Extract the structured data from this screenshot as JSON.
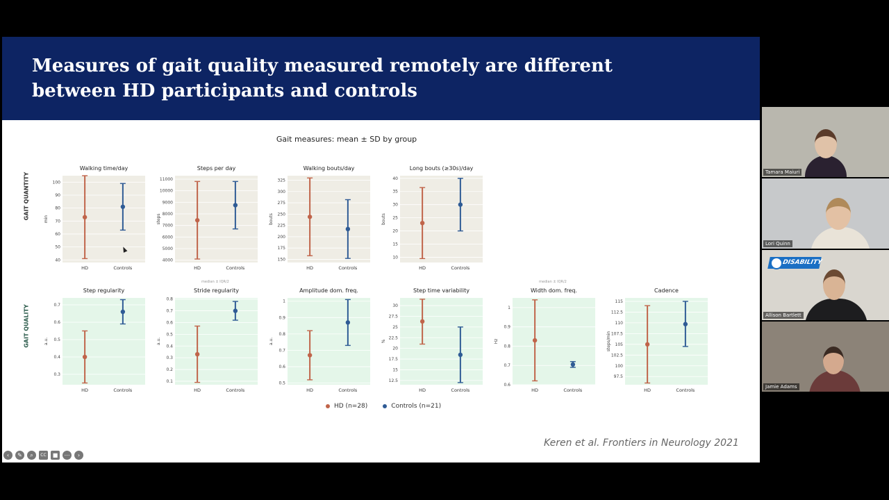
{
  "slide": {
    "title": "Measures of gait quality measured remotely are different\nbetween HD participants and controls",
    "figure_title": "Gait measures: mean ± SD by group",
    "row_labels": [
      "GAIT QUANTITY",
      "GAIT QUALITY"
    ],
    "small_notes": [
      "median ± IQR/2",
      "median ± IQR/2"
    ],
    "legend": [
      {
        "label": "HD (n=28)",
        "color": "#c0644a"
      },
      {
        "label": "Controls (n=21)",
        "color": "#2f5b95"
      }
    ],
    "citation": "Keren et al. Frontiers in Neurology 2021"
  },
  "colors": {
    "banner": "#0d2463",
    "hd": "#c0644a",
    "controls": "#2f5b95",
    "quantity_bg": "#efede5",
    "quality_bg": "#e4f6e9"
  },
  "chart_data": [
    {
      "type": "scatter",
      "title": "Walking time/day",
      "ylabel": "min",
      "categories": [
        "HD",
        "Controls"
      ],
      "yticks": [
        40,
        50,
        60,
        70,
        80,
        90,
        100
      ],
      "ylim": [
        38,
        105
      ],
      "row": "quantity",
      "series": [
        {
          "name": "HD (n=28)",
          "mean": 73,
          "low": 41,
          "high": 105
        },
        {
          "name": "Controls (n=21)",
          "mean": 81,
          "low": 63,
          "high": 99
        }
      ]
    },
    {
      "type": "scatter",
      "title": "Steps per day",
      "ylabel": "steps",
      "categories": [
        "HD",
        "Controls"
      ],
      "yticks": [
        4000,
        5000,
        6000,
        7000,
        8000,
        9000,
        10000,
        11000
      ],
      "ylim": [
        3800,
        11300
      ],
      "row": "quantity",
      "series": [
        {
          "name": "HD (n=28)",
          "mean": 7450,
          "low": 4100,
          "high": 10800
        },
        {
          "name": "Controls (n=21)",
          "mean": 8750,
          "low": 6700,
          "high": 10800
        }
      ]
    },
    {
      "type": "scatter",
      "title": "Walking bouts/day",
      "ylabel": "bouts",
      "categories": [
        "HD",
        "Controls"
      ],
      "yticks": [
        150,
        175,
        200,
        225,
        250,
        275,
        300,
        325
      ],
      "ylim": [
        143,
        335
      ],
      "row": "quantity",
      "series": [
        {
          "name": "HD (n=28)",
          "mean": 244,
          "low": 158,
          "high": 330
        },
        {
          "name": "Controls (n=21)",
          "mean": 217,
          "low": 152,
          "high": 282
        }
      ]
    },
    {
      "type": "scatter",
      "title": "Long bouts (≥30s)/day",
      "ylabel": "bouts",
      "categories": [
        "HD",
        "Controls"
      ],
      "yticks": [
        10,
        15,
        20,
        25,
        30,
        35,
        40
      ],
      "ylim": [
        8,
        41
      ],
      "row": "quantity",
      "series": [
        {
          "name": "HD (n=28)",
          "mean": 23,
          "low": 9.5,
          "high": 36.5
        },
        {
          "name": "Controls (n=21)",
          "mean": 30,
          "low": 20,
          "high": 40
        }
      ]
    },
    {
      "type": "scatter",
      "title": "Step regularity",
      "ylabel": "a.u.",
      "categories": [
        "HD",
        "Controls"
      ],
      "yticks": [
        0.3,
        0.4,
        0.5,
        0.6,
        0.7
      ],
      "ylim": [
        0.24,
        0.74
      ],
      "row": "quality",
      "series": [
        {
          "name": "HD (n=28)",
          "mean": 0.4,
          "low": 0.25,
          "high": 0.55
        },
        {
          "name": "Controls (n=21)",
          "mean": 0.66,
          "low": 0.59,
          "high": 0.73
        }
      ]
    },
    {
      "type": "scatter",
      "title": "Stride regularity",
      "ylabel": "a.u.",
      "categories": [
        "HD",
        "Controls"
      ],
      "yticks": [
        0.1,
        0.2,
        0.3,
        0.4,
        0.5,
        0.6,
        0.7,
        0.8
      ],
      "ylim": [
        0.07,
        0.81
      ],
      "row": "quality",
      "series": [
        {
          "name": "HD (n=28)",
          "mean": 0.33,
          "low": 0.09,
          "high": 0.57
        },
        {
          "name": "Controls (n=21)",
          "mean": 0.7,
          "low": 0.62,
          "high": 0.78
        }
      ]
    },
    {
      "type": "scatter",
      "title": "Amplitude dom. freq.",
      "ylabel": "a.u.",
      "categories": [
        "HD",
        "Controls"
      ],
      "yticks": [
        0.5,
        0.6,
        0.7,
        0.8,
        0.9,
        1.0
      ],
      "ylim": [
        0.49,
        1.02
      ],
      "row": "quality",
      "series": [
        {
          "name": "HD (n=28)",
          "mean": 0.67,
          "low": 0.52,
          "high": 0.82
        },
        {
          "name": "Controls (n=21)",
          "mean": 0.87,
          "low": 0.73,
          "high": 1.01
        }
      ]
    },
    {
      "type": "scatter",
      "title": "Step time variability",
      "ylabel": "%",
      "categories": [
        "HD",
        "Controls"
      ],
      "yticks": [
        12.5,
        15.0,
        17.5,
        20.0,
        22.5,
        25.0,
        27.5,
        30.0
      ],
      "ylim": [
        11.5,
        31.8
      ],
      "row": "quality",
      "series": [
        {
          "name": "HD (n=28)",
          "mean": 26.3,
          "low": 21,
          "high": 31.5
        },
        {
          "name": "Controls (n=21)",
          "mean": 18.5,
          "low": 12,
          "high": 25
        }
      ]
    },
    {
      "type": "scatter",
      "title": "Width dom. freq.",
      "ylabel": "Hz",
      "categories": [
        "HD",
        "Controls"
      ],
      "yticks": [
        0.6,
        0.7,
        0.8,
        0.9,
        1.0
      ],
      "ylim": [
        0.6,
        1.05
      ],
      "row": "quality",
      "series": [
        {
          "name": "HD (n=28)",
          "mean": 0.83,
          "low": 0.62,
          "high": 1.04
        },
        {
          "name": "Controls (n=21)",
          "mean": 0.705,
          "low": 0.69,
          "high": 0.72
        }
      ]
    },
    {
      "type": "scatter",
      "title": "Cadence",
      "ylabel": "steps/min",
      "categories": [
        "HD",
        "Controls"
      ],
      "yticks": [
        97.5,
        100.0,
        102.5,
        105.0,
        107.5,
        110.0,
        112.5,
        115.0
      ],
      "ylim": [
        95.6,
        115.8
      ],
      "row": "quality",
      "series": [
        {
          "name": "HD (n=28)",
          "mean": 105,
          "low": 96,
          "high": 114
        },
        {
          "name": "Controls (n=21)",
          "mean": 109.7,
          "low": 104.5,
          "high": 115
        }
      ]
    }
  ],
  "toolbar": {
    "icons": [
      "back-icon",
      "pen-icon",
      "zoom-icon",
      "captions-icon",
      "camera-icon",
      "more-icon",
      "forward-icon"
    ],
    "glyphs": [
      "‹",
      "✎",
      "⌕",
      "CC",
      "■",
      "⋯",
      "›"
    ]
  },
  "participants": [
    {
      "name": "Tamara Maiuri",
      "bg": "#b9b7ae",
      "hair": "#5a3b2a",
      "top": "#2a2130"
    },
    {
      "name": "Lori Quinn",
      "bg": "#c7c9cb",
      "hair": "#b08a5a",
      "top": "#e9e3d8"
    },
    {
      "name": "Allison Bartlett",
      "bg": "#d9d6cf",
      "hair": "#6b4a33",
      "top": "#1d1d1f",
      "logo": "DISABILITY",
      "logo_sub": "PROGRAM"
    },
    {
      "name": "Jamie Adams",
      "bg": "#8c8378",
      "hair": "#3a2a22",
      "top": "#6b3b3a"
    }
  ]
}
